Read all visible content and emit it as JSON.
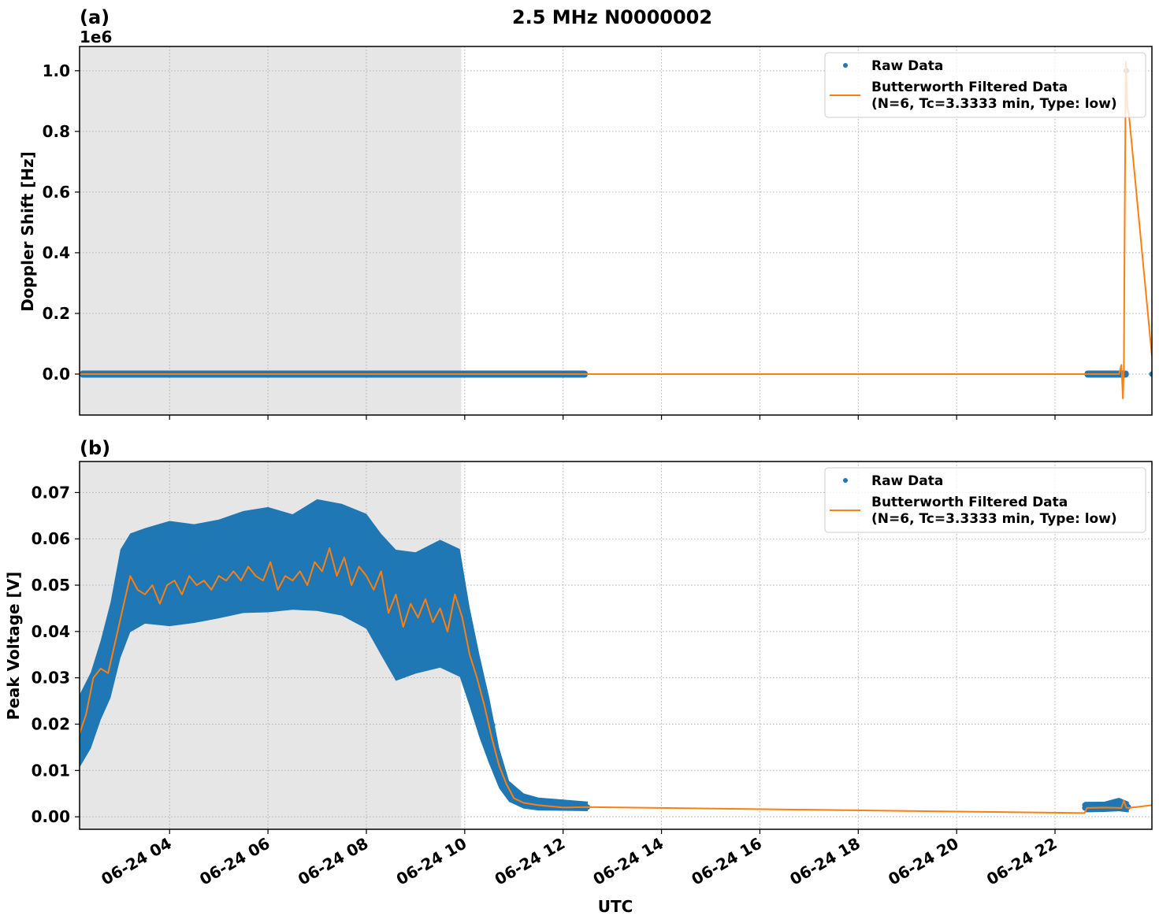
{
  "figure": {
    "title": "2.5 MHz N0000002",
    "xlabel": "UTC"
  },
  "colors": {
    "raw": "#1f77b4",
    "filtered": "#ff7f0e",
    "shade": "#e6e6e6",
    "grid": "#b0b0b0"
  },
  "legend": {
    "raw_label": "Raw Data",
    "filtered_label_line1": "Butterworth Filtered Data",
    "filtered_label_line2": "(N=6, Tc=3.3333 min, Type: low)"
  },
  "chart_data": [
    {
      "panel": "(a)",
      "type": "scatter+line",
      "title": "",
      "ylabel": "Doppler Shift [Hz]",
      "offset_text": "1e6",
      "xlabel": "UTC",
      "xlim_hours": [
        2.17,
        23.97
      ],
      "ylim": [
        -0.135,
        1.08
      ],
      "yticks": [
        0.0,
        0.2,
        0.4,
        0.6,
        0.8,
        1.0
      ],
      "ytick_labels": [
        "0.0",
        "0.2",
        "0.4",
        "0.6",
        "0.8",
        "1.0"
      ],
      "xticks_hours": [
        4,
        6,
        8,
        10,
        12,
        14,
        16,
        18,
        20,
        22
      ],
      "xtick_labels": [
        "06-24 04",
        "06-24 06",
        "06-24 08",
        "06-24 10",
        "06-24 12",
        "06-24 14",
        "06-24 16",
        "06-24 18",
        "06-24 20",
        "06-24 22"
      ],
      "grid": true,
      "shaded_region_hours": [
        2.17,
        9.93
      ],
      "legend_position": "upper right",
      "series": [
        {
          "name": "Raw Data",
          "kind": "scatter",
          "segments": [
            {
              "x": [
                2.17,
                12.5
              ],
              "y": 0.0
            },
            {
              "x": [
                22.6,
                23.5
              ],
              "y": 0.0
            }
          ],
          "outliers": [
            {
              "x": 23.45,
              "y": 1.0
            },
            {
              "x": 23.97,
              "y": 0.0
            }
          ]
        },
        {
          "name": "Butterworth Filtered Data (N=6, Tc=3.3333 min, Type: low)",
          "kind": "line",
          "x": [
            2.17,
            12.5,
            22.6,
            23.3,
            23.35,
            23.38,
            23.4,
            23.42,
            23.44,
            23.47,
            23.5,
            23.97
          ],
          "y": [
            0.0,
            0.0,
            0.0,
            0.0,
            0.03,
            -0.08,
            0.02,
            0.6,
            1.03,
            0.88,
            0.86,
            0.06
          ]
        }
      ]
    },
    {
      "panel": "(b)",
      "type": "scatter+line",
      "title": "",
      "ylabel": "Peak Voltage [V]",
      "xlabel": "UTC",
      "xlim_hours": [
        2.17,
        23.97
      ],
      "ylim": [
        -0.0027,
        0.0767
      ],
      "yticks": [
        0.0,
        0.01,
        0.02,
        0.03,
        0.04,
        0.05,
        0.06,
        0.07
      ],
      "ytick_labels": [
        "0.00",
        "0.01",
        "0.02",
        "0.03",
        "0.04",
        "0.05",
        "0.06",
        "0.07"
      ],
      "xticks_hours": [
        4,
        6,
        8,
        10,
        12,
        14,
        16,
        18,
        20,
        22
      ],
      "xtick_labels": [
        "06-24 04",
        "06-24 06",
        "06-24 08",
        "06-24 10",
        "06-24 12",
        "06-24 14",
        "06-24 16",
        "06-24 18",
        "06-24 20",
        "06-24 22"
      ],
      "grid": true,
      "shaded_region_hours": [
        2.17,
        9.93
      ],
      "legend_position": "upper right",
      "series": [
        {
          "name": "Raw Data",
          "kind": "scatter",
          "envelope_x": [
            2.17,
            2.4,
            2.6,
            2.8,
            3.0,
            3.2,
            3.5,
            4.0,
            4.5,
            5.0,
            5.5,
            6.0,
            6.5,
            7.0,
            7.5,
            8.0,
            8.3,
            8.6,
            9.0,
            9.5,
            9.9,
            10.1,
            10.3,
            10.5,
            10.7,
            10.9,
            11.2,
            11.5,
            12.0,
            12.5,
            22.6,
            23.0,
            23.3,
            23.5
          ],
          "envelope_low": [
            0.008,
            0.012,
            0.018,
            0.022,
            0.03,
            0.036,
            0.038,
            0.037,
            0.038,
            0.039,
            0.04,
            0.04,
            0.041,
            0.04,
            0.039,
            0.036,
            0.03,
            0.024,
            0.026,
            0.027,
            0.025,
            0.02,
            0.014,
            0.009,
            0.005,
            0.003,
            0.0018,
            0.0015,
            0.0015,
            0.0015,
            0.0012,
            0.0013,
            0.0013,
            0.0012
          ],
          "envelope_high": [
            0.029,
            0.034,
            0.041,
            0.05,
            0.062,
            0.065,
            0.066,
            0.068,
            0.067,
            0.068,
            0.07,
            0.071,
            0.069,
            0.073,
            0.072,
            0.07,
            0.066,
            0.063,
            0.062,
            0.065,
            0.063,
            0.049,
            0.038,
            0.028,
            0.016,
            0.008,
            0.005,
            0.004,
            0.0035,
            0.003,
            0.003,
            0.003,
            0.004,
            0.003
          ]
        },
        {
          "name": "Butterworth Filtered Data (N=6, Tc=3.3333 min, Type: low)",
          "kind": "line",
          "x": [
            2.17,
            2.3,
            2.45,
            2.6,
            2.75,
            2.9,
            3.05,
            3.2,
            3.35,
            3.5,
            3.65,
            3.8,
            3.95,
            4.1,
            4.25,
            4.4,
            4.55,
            4.7,
            4.85,
            5.0,
            5.15,
            5.3,
            5.45,
            5.6,
            5.75,
            5.9,
            6.05,
            6.2,
            6.35,
            6.5,
            6.65,
            6.8,
            6.95,
            7.1,
            7.25,
            7.4,
            7.55,
            7.7,
            7.85,
            8.0,
            8.15,
            8.3,
            8.45,
            8.6,
            8.75,
            8.9,
            9.05,
            9.2,
            9.35,
            9.5,
            9.65,
            9.8,
            9.95,
            10.1,
            10.25,
            10.4,
            10.55,
            10.7,
            10.85,
            11.0,
            11.2,
            11.5,
            12.0,
            12.5,
            22.6,
            22.65,
            23.0,
            23.35,
            23.4,
            23.45,
            23.5,
            23.97
          ],
          "y": [
            0.018,
            0.022,
            0.03,
            0.032,
            0.031,
            0.038,
            0.045,
            0.052,
            0.049,
            0.048,
            0.05,
            0.046,
            0.05,
            0.051,
            0.048,
            0.052,
            0.05,
            0.051,
            0.049,
            0.052,
            0.051,
            0.053,
            0.051,
            0.054,
            0.052,
            0.051,
            0.055,
            0.049,
            0.052,
            0.051,
            0.053,
            0.05,
            0.055,
            0.053,
            0.058,
            0.052,
            0.056,
            0.05,
            0.054,
            0.052,
            0.049,
            0.053,
            0.044,
            0.048,
            0.041,
            0.046,
            0.043,
            0.047,
            0.042,
            0.045,
            0.04,
            0.048,
            0.043,
            0.035,
            0.03,
            0.024,
            0.017,
            0.011,
            0.007,
            0.004,
            0.003,
            0.0025,
            0.002,
            0.0021,
            0.0008,
            0.0019,
            0.002,
            0.0019,
            0.0035,
            0.002,
            0.0019,
            0.0025
          ]
        }
      ]
    }
  ]
}
